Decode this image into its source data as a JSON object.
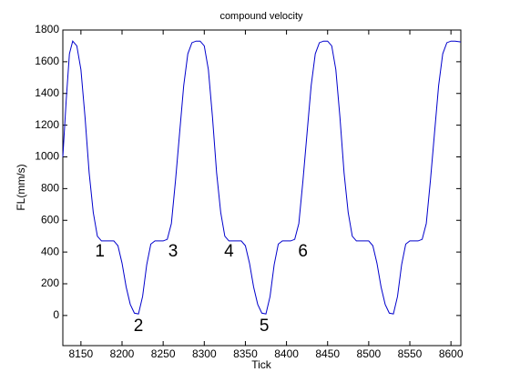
{
  "chart_data": {
    "type": "line",
    "title": "compound velocity",
    "x_label": "Tick",
    "y_label": "FL(mm/s)",
    "x": [
      8128,
      8132,
      8136,
      8140,
      8145,
      8150,
      8155,
      8160,
      8165,
      8170,
      8175,
      8180,
      8185,
      8190,
      8195,
      8200,
      8205,
      8210,
      8215,
      8220,
      8225,
      8230,
      8235,
      8240,
      8245,
      8250,
      8255,
      8260,
      8265,
      8270,
      8275,
      8280,
      8285,
      8290,
      8295,
      8300,
      8305,
      8310,
      8315,
      8320,
      8325,
      8330,
      8335,
      8340,
      8345,
      8350,
      8355,
      8360,
      8365,
      8370,
      8375,
      8380,
      8385,
      8390,
      8395,
      8400,
      8405,
      8410,
      8415,
      8420,
      8425,
      8430,
      8435,
      8440,
      8445,
      8450,
      8455,
      8460,
      8465,
      8470,
      8475,
      8480,
      8485,
      8490,
      8495,
      8500,
      8505,
      8510,
      8515,
      8520,
      8525,
      8530,
      8535,
      8540,
      8545,
      8550,
      8555,
      8560,
      8565,
      8570,
      8575,
      8580,
      8585,
      8590,
      8595,
      8600,
      8605,
      8612
    ],
    "series": [
      {
        "name": "FL",
        "color": "#0000cc",
        "values": [
          1000,
          1350,
          1650,
          1730,
          1700,
          1550,
          1250,
          900,
          650,
          500,
          470,
          470,
          470,
          470,
          440,
          330,
          180,
          70,
          15,
          10,
          120,
          320,
          450,
          470,
          470,
          470,
          480,
          580,
          850,
          1150,
          1450,
          1650,
          1720,
          1730,
          1730,
          1700,
          1550,
          1250,
          900,
          650,
          500,
          470,
          470,
          470,
          470,
          440,
          330,
          180,
          70,
          15,
          10,
          120,
          320,
          450,
          470,
          470,
          470,
          480,
          580,
          850,
          1150,
          1450,
          1650,
          1720,
          1730,
          1730,
          1700,
          1550,
          1250,
          900,
          650,
          500,
          470,
          470,
          470,
          470,
          440,
          330,
          180,
          70,
          15,
          10,
          120,
          320,
          450,
          470,
          470,
          470,
          480,
          580,
          850,
          1150,
          1450,
          1650,
          1720,
          1730,
          1730,
          1725
        ]
      }
    ],
    "xlim": [
      8128,
      8612
    ],
    "ylim": [
      -190,
      1800
    ],
    "xticks": [
      8150,
      8200,
      8250,
      8300,
      8350,
      8400,
      8450,
      8500,
      8550,
      8600
    ],
    "yticks": [
      0,
      200,
      400,
      600,
      800,
      1000,
      1200,
      1400,
      1600,
      1800
    ],
    "annotations": [
      {
        "text": "1",
        "x": 8173,
        "y": 400
      },
      {
        "text": "2",
        "x": 8220,
        "y": -70
      },
      {
        "text": "3",
        "x": 8262,
        "y": 400
      },
      {
        "text": "4",
        "x": 8330,
        "y": 400
      },
      {
        "text": "5",
        "x": 8373,
        "y": -70
      },
      {
        "text": "6",
        "x": 8420,
        "y": 400
      }
    ]
  }
}
